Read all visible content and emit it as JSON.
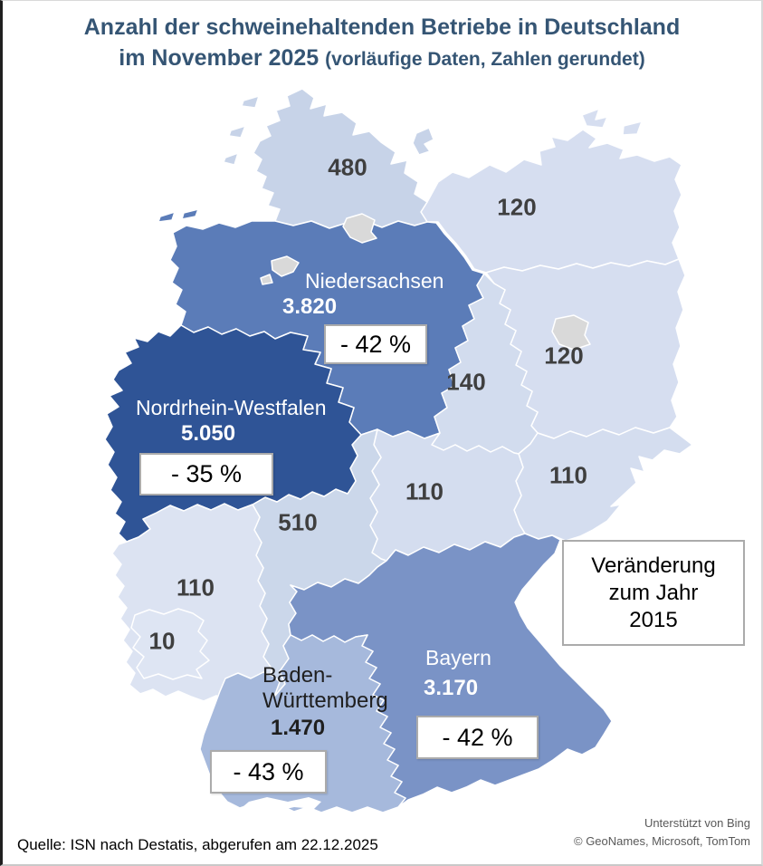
{
  "title": {
    "line1": "Anzahl der schweinehaltenden Betriebe in Deutschland",
    "line2_main": "im November 2025 ",
    "line2_note": "(vorläufige Daten, Zahlen gerundet)"
  },
  "legend_box": {
    "lines": [
      "Veränderung",
      "zum Jahr",
      "2015"
    ]
  },
  "source": "Quelle: ISN nach Destatis, abgerufen am 22.12.2025",
  "attribution": {
    "line1": "Unterstützt von Bing",
    "line2": "© GeoNames, Microsoft, TomTom"
  },
  "palette": {
    "title": "#355574",
    "number": "#3F3F3F",
    "light_label": "#FFFFFF",
    "dark_label": "#1F1F1F",
    "box_border": "#ABABAB",
    "box_bg": "#FFFFFF",
    "city": "#D9D9D9",
    "border_stroke": "#FFFFFF",
    "attribution": "#595959",
    "source": "#000000"
  },
  "map": {
    "regions": [
      {
        "key": "schleswig-holstein",
        "value_label": "480",
        "color": "#C7D3E8"
      },
      {
        "key": "mecklenburg-vorpommern",
        "value_label": "120",
        "color": "#D6DEF0"
      },
      {
        "key": "niedersachsen",
        "name_label": "Niedersachsen",
        "value_label": "3.820",
        "change_label": "- 42 %",
        "color": "#5B7CB8"
      },
      {
        "key": "brandenburg",
        "value_label": "120",
        "color": "#D6DEF0"
      },
      {
        "key": "sachsen-anhalt",
        "value_label": "140",
        "color": "#D2DCEE"
      },
      {
        "key": "nordrhein-westfalen",
        "name_label": "Nordrhein-Westfalen",
        "value_label": "5.050",
        "change_label": "- 35 %",
        "color": "#2F5496"
      },
      {
        "key": "sachsen",
        "value_label": "110",
        "color": "#D4DDEF"
      },
      {
        "key": "thueringen",
        "value_label": "110",
        "color": "#D4DDEF"
      },
      {
        "key": "hessen",
        "value_label": "510",
        "color": "#CBD7EA"
      },
      {
        "key": "rheinland-pfalz",
        "value_label": "110",
        "color": "#DCE3F2"
      },
      {
        "key": "saarland",
        "value_label": "10",
        "color": "#DEE5F3"
      },
      {
        "key": "baden-wuerttemberg",
        "name_line1": "Baden-",
        "name_line2": "Württemberg",
        "value_label": "1.470",
        "change_label": "- 43 %",
        "color": "#A6B9DC"
      },
      {
        "key": "bayern",
        "name_label": "Bayern",
        "value_label": "3.170",
        "change_label": "- 42 %",
        "color": "#7A93C6"
      }
    ]
  }
}
